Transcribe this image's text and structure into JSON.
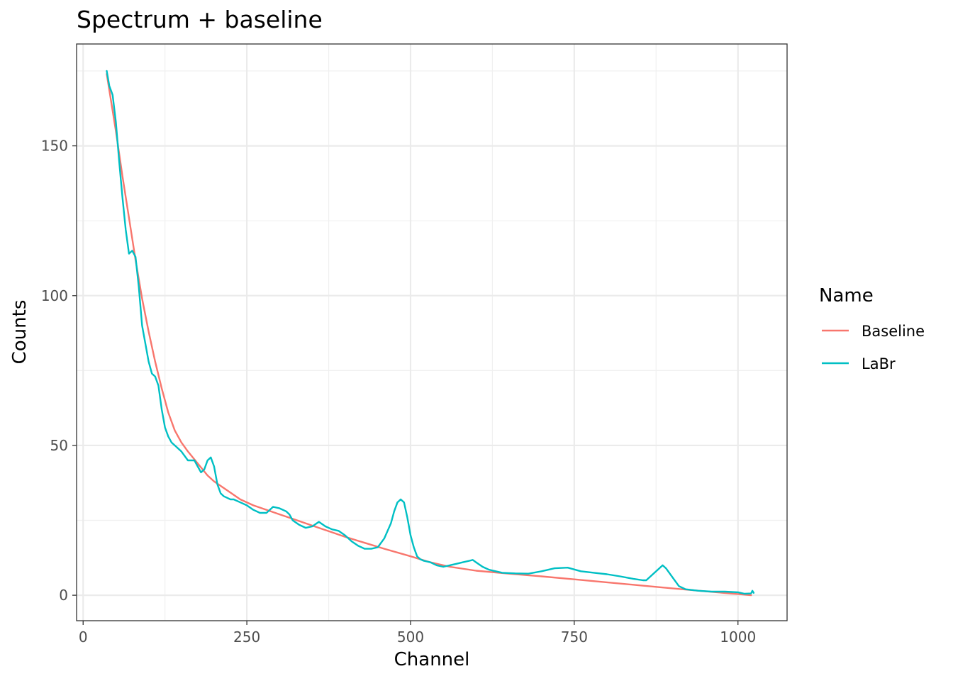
{
  "chart_data": {
    "type": "line",
    "title": "Spectrum + baseline",
    "xlabel": "Channel",
    "ylabel": "Counts",
    "xlim": [
      -10,
      1075
    ],
    "ylim": [
      -8.5,
      184
    ],
    "xticks": [
      0,
      250,
      500,
      750,
      1000
    ],
    "xtick_labels": [
      "0",
      "250",
      "500",
      "750",
      "1000"
    ],
    "yticks": [
      0,
      50,
      100,
      150
    ],
    "ytick_labels": [
      "0",
      "50",
      "100",
      "150"
    ],
    "grid": true,
    "legend": {
      "title": "Name",
      "position": "right"
    },
    "series": [
      {
        "name": "Baseline",
        "color": "#F8766D",
        "x": [
          36,
          50,
          60,
          70,
          80,
          90,
          100,
          110,
          120,
          130,
          140,
          150,
          160,
          175,
          190,
          200,
          220,
          240,
          260,
          280,
          300,
          320,
          340,
          360,
          380,
          400,
          430,
          460,
          500,
          530,
          560,
          600,
          650,
          700,
          750,
          800,
          850,
          900,
          950,
          1000,
          1020
        ],
        "y": [
          174,
          155,
          140,
          126,
          112,
          99,
          88,
          78,
          69,
          61,
          55,
          51,
          48,
          44,
          40,
          38,
          35,
          32,
          30,
          28.5,
          27,
          25.5,
          24,
          22.5,
          21,
          19.5,
          17.5,
          15.5,
          13,
          11,
          9.5,
          8.2,
          7.2,
          6.3,
          5.3,
          4.3,
          3.3,
          2.3,
          1.3,
          0.4,
          0
        ]
      },
      {
        "name": "LaBr",
        "color": "#00BFC4",
        "x": [
          36,
          40,
          45,
          50,
          55,
          60,
          65,
          70,
          75,
          80,
          85,
          90,
          95,
          100,
          105,
          110,
          115,
          120,
          125,
          130,
          135,
          140,
          150,
          160,
          170,
          175,
          180,
          185,
          190,
          195,
          200,
          205,
          210,
          215,
          220,
          225,
          230,
          240,
          250,
          260,
          270,
          280,
          290,
          300,
          310,
          315,
          320,
          330,
          340,
          350,
          360,
          370,
          380,
          390,
          400,
          410,
          420,
          430,
          440,
          450,
          460,
          470,
          475,
          480,
          485,
          490,
          495,
          500,
          505,
          510,
          515,
          520,
          530,
          540,
          550,
          560,
          570,
          580,
          590,
          595,
          600,
          610,
          620,
          630,
          640,
          660,
          680,
          700,
          720,
          740,
          760,
          780,
          800,
          820,
          840,
          855,
          860,
          870,
          880,
          885,
          890,
          900,
          910,
          920,
          940,
          960,
          980,
          1000,
          1010,
          1020,
          1022,
          1024
        ],
        "y": [
          175,
          170,
          167,
          158,
          145,
          133,
          122,
          114,
          115,
          113,
          103,
          90,
          84,
          78,
          74,
          73,
          70,
          62,
          56,
          53,
          51,
          50,
          48,
          45,
          45,
          43,
          41,
          42,
          45,
          46,
          43,
          37,
          34,
          33,
          32.5,
          32,
          32,
          31,
          30,
          28.5,
          27.5,
          27.5,
          29.5,
          29,
          28,
          27,
          25,
          23.5,
          22.5,
          23,
          24.5,
          23,
          22,
          21.5,
          20,
          18,
          16.5,
          15.5,
          15.5,
          16,
          19,
          24,
          28,
          31,
          32,
          31,
          26,
          20,
          16,
          13,
          12,
          11.5,
          11,
          10,
          9.5,
          10,
          10.5,
          11,
          11.5,
          11.8,
          11,
          9.5,
          8.5,
          8,
          7.5,
          7.3,
          7.2,
          8,
          9,
          9.2,
          8,
          7.5,
          7,
          6.3,
          5.5,
          5,
          5,
          7,
          9,
          10,
          9,
          6,
          3,
          2,
          1.5,
          1.2,
          1.2,
          1,
          0.5,
          0.6,
          1.5,
          0.8
        ]
      }
    ]
  }
}
